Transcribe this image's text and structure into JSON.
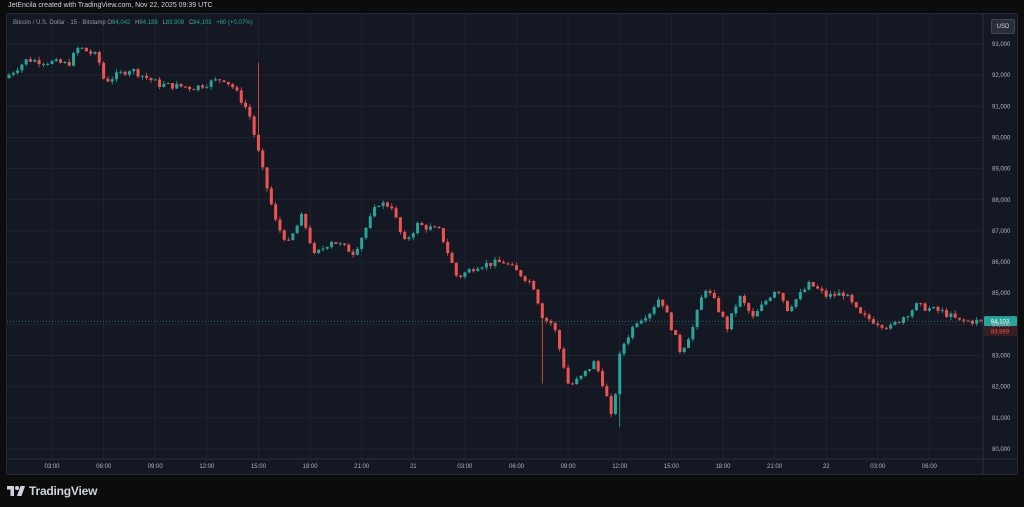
{
  "header": {
    "credit": "JetEncila created with TradingView.com, Nov 22, 2025 09:39 UTC"
  },
  "legend": {
    "symbol": "Bitcoin / U.S. Dollar · 15 · Bitstamp",
    "open_label": "O",
    "open": "84,042",
    "high_label": "H",
    "high": "84,188",
    "low_label": "L",
    "low": "83,909",
    "close_label": "C",
    "close": "84,103",
    "change": "+60 (+0.07%)"
  },
  "currency_button": "USD",
  "footer": {
    "brand": "TradingView"
  },
  "colors": {
    "background": "#141823",
    "up": "#26a69a",
    "down": "#ef5350",
    "grid": "#1f2330",
    "price_line": "#26a69a"
  },
  "price_tags": {
    "last": "84,103",
    "countdown": "83,969"
  },
  "chart_data": {
    "type": "candlestick",
    "title": "",
    "symbol": "Bitcoin / U.S. Dollar",
    "interval": "15",
    "exchange": "Bitstamp",
    "ylim": [
      79500,
      93800
    ],
    "y_ticks": [
      80000,
      81000,
      82000,
      83000,
      84000,
      85000,
      86000,
      87000,
      88000,
      89000,
      90000,
      91000,
      92000,
      93000
    ],
    "y_tick_labels": [
      "80,000",
      "81,000",
      "82,000",
      "83,000",
      "84,000",
      "85,000",
      "86,000",
      "87,000",
      "88,000",
      "89,000",
      "90,000",
      "91,000",
      "92,000",
      "93,000"
    ],
    "x_tick_labels": [
      "03:00",
      "06:00",
      "09:00",
      "12:00",
      "15:00",
      "18:00",
      "21:00",
      "21",
      "03:00",
      "06:00",
      "09:00",
      "12:00",
      "15:00",
      "18:00",
      "21:00",
      "22",
      "03:00",
      "06:00"
    ],
    "x_tick_hours": [
      3,
      6,
      9,
      12,
      15,
      18,
      21,
      24,
      27,
      30,
      33,
      36,
      39,
      42,
      45,
      48,
      51,
      54
    ],
    "x_range_hours": [
      0.5,
      57.0
    ],
    "grid": true,
    "last_price": 84103,
    "anchors": [
      {
        "hour": 0.5,
        "price": 91900
      },
      {
        "hour": 1.8,
        "price": 92500
      },
      {
        "hour": 3.5,
        "price": 92400
      },
      {
        "hour": 4.2,
        "price": 92350
      },
      {
        "hour": 4.8,
        "price": 92900
      },
      {
        "hour": 5.9,
        "price": 92600
      },
      {
        "hour": 6.3,
        "price": 91800
      },
      {
        "hour": 7.8,
        "price": 92200
      },
      {
        "hour": 9.5,
        "price": 91700
      },
      {
        "hour": 11.5,
        "price": 91600
      },
      {
        "hour": 13.2,
        "price": 91900
      },
      {
        "hour": 13.8,
        "price": 91600
      },
      {
        "hour": 14.7,
        "price": 90800
      },
      {
        "hour": 15.6,
        "price": 88700
      },
      {
        "hour": 16.3,
        "price": 87200
      },
      {
        "hour": 17.0,
        "price": 86600
      },
      {
        "hour": 17.8,
        "price": 87500
      },
      {
        "hour": 18.5,
        "price": 86200
      },
      {
        "hour": 19.5,
        "price": 86700
      },
      {
        "hour": 20.8,
        "price": 86300
      },
      {
        "hour": 22.2,
        "price": 87900
      },
      {
        "hour": 23.0,
        "price": 87800
      },
      {
        "hour": 23.7,
        "price": 86600
      },
      {
        "hour": 24.5,
        "price": 87200
      },
      {
        "hour": 25.8,
        "price": 87000
      },
      {
        "hour": 26.8,
        "price": 85500
      },
      {
        "hour": 28.0,
        "price": 85900
      },
      {
        "hour": 29.5,
        "price": 86000
      },
      {
        "hour": 30.5,
        "price": 85600
      },
      {
        "hour": 31.2,
        "price": 85300
      },
      {
        "hour": 31.8,
        "price": 84200
      },
      {
        "hour": 32.4,
        "price": 84000
      },
      {
        "hour": 33.3,
        "price": 82000
      },
      {
        "hour": 34.0,
        "price": 82300
      },
      {
        "hour": 34.8,
        "price": 82800
      },
      {
        "hour": 35.4,
        "price": 81900
      },
      {
        "hour": 35.8,
        "price": 80900
      },
      {
        "hour": 36.3,
        "price": 83200
      },
      {
        "hour": 37.2,
        "price": 84100
      },
      {
        "hour": 38.0,
        "price": 84400
      },
      {
        "hour": 38.6,
        "price": 84900
      },
      {
        "hour": 39.2,
        "price": 84000
      },
      {
        "hour": 39.8,
        "price": 83100
      },
      {
        "hour": 40.5,
        "price": 83900
      },
      {
        "hour": 41.2,
        "price": 85200
      },
      {
        "hour": 41.8,
        "price": 84700
      },
      {
        "hour": 42.5,
        "price": 83900
      },
      {
        "hour": 43.2,
        "price": 84900
      },
      {
        "hour": 44.0,
        "price": 84200
      },
      {
        "hour": 44.8,
        "price": 84800
      },
      {
        "hour": 45.4,
        "price": 85200
      },
      {
        "hour": 46.0,
        "price": 84500
      },
      {
        "hour": 47.3,
        "price": 85300
      },
      {
        "hour": 48.3,
        "price": 84900
      },
      {
        "hour": 49.3,
        "price": 85000
      },
      {
        "hour": 50.2,
        "price": 84300
      },
      {
        "hour": 51.5,
        "price": 84000
      },
      {
        "hour": 52.0,
        "price": 83900
      },
      {
        "hour": 53.5,
        "price": 84600
      },
      {
        "hour": 55.0,
        "price": 84400
      },
      {
        "hour": 56.0,
        "price": 84100
      },
      {
        "hour": 56.5,
        "price": 84103
      }
    ],
    "bar_interval_hours": 0.25,
    "spikes": [
      {
        "hour": 15.0,
        "high": 92400,
        "low": 91500
      },
      {
        "hour": 31.6,
        "high": 84500,
        "low": 82100
      },
      {
        "hour": 35.9,
        "high": 81900,
        "low": 80700
      }
    ]
  }
}
